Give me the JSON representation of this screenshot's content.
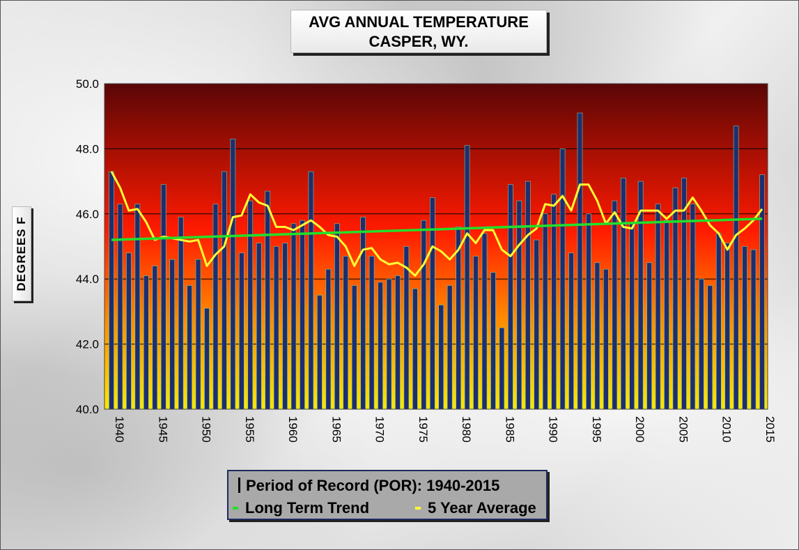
{
  "title_line1": "AVG ANNUAL  TEMPERATURE",
  "title_line2": "CASPER, WY.",
  "legend": {
    "por_label": "Period of Record (POR):  1940-2015",
    "trend_label": "Long Term Trend",
    "avg_label": "5 Year Average"
  },
  "colors": {
    "bar": "#1f2d6e",
    "bar_edge": "#6fd3a5",
    "trend": "#22e02a",
    "five_year_avg": "#ffff33",
    "plot_top": "#5a0606",
    "plot_mid": "#ff1a00",
    "plot_bottom": "#ffe600"
  },
  "chart_data": {
    "type": "bar",
    "ylabel": "DEGREES F",
    "ylim": [
      40,
      50
    ],
    "yticks": [
      "40.0",
      "42.0",
      "44.0",
      "46.0",
      "48.0",
      "50.0"
    ],
    "xtick_labels": [
      "1940",
      "1945",
      "1950",
      "1955",
      "1960",
      "1965",
      "1970",
      "1975",
      "1980",
      "1985",
      "1990",
      "1995",
      "2000",
      "2005",
      "2010",
      "2015"
    ],
    "grid": true,
    "legend_position": "bottom-center",
    "x": [
      1940,
      1941,
      1942,
      1943,
      1944,
      1945,
      1946,
      1947,
      1948,
      1949,
      1950,
      1951,
      1952,
      1953,
      1954,
      1955,
      1956,
      1957,
      1958,
      1959,
      1960,
      1961,
      1962,
      1963,
      1964,
      1965,
      1966,
      1967,
      1968,
      1969,
      1970,
      1971,
      1972,
      1973,
      1974,
      1975,
      1976,
      1977,
      1978,
      1979,
      1980,
      1981,
      1982,
      1983,
      1984,
      1985,
      1986,
      1987,
      1988,
      1989,
      1990,
      1991,
      1992,
      1993,
      1994,
      1995,
      1996,
      1997,
      1998,
      1999,
      2000,
      2001,
      2002,
      2003,
      2004,
      2005,
      2006,
      2007,
      2008,
      2009,
      2010,
      2011,
      2012,
      2013,
      2014,
      2015
    ],
    "series": [
      {
        "type": "bar",
        "values": [
          47.3,
          46.3,
          44.8,
          46.3,
          44.1,
          44.4,
          46.9,
          44.6,
          45.9,
          43.8,
          44.6,
          43.1,
          46.3,
          47.3,
          48.3,
          44.8,
          46.4,
          45.1,
          46.7,
          45.0,
          45.1,
          45.7,
          45.8,
          47.3,
          43.5,
          44.3,
          45.7,
          44.7,
          43.8,
          45.9,
          44.7,
          43.9,
          44.0,
          44.1,
          45.0,
          43.7,
          45.8,
          46.5,
          43.2,
          43.8,
          45.6,
          48.1,
          44.7,
          45.4,
          44.2,
          42.5,
          46.9,
          46.4,
          47.0,
          45.2,
          46.0,
          46.6,
          48.0,
          44.8,
          49.1,
          46.0,
          44.5,
          44.3,
          46.4,
          47.1,
          45.7,
          47.0,
          44.5,
          46.3,
          45.8,
          46.8,
          47.1,
          46.3,
          44.0,
          43.8,
          45.4,
          45.1,
          48.7,
          45.0,
          44.9,
          47.2
        ]
      },
      {
        "name": "5 Year Average",
        "type": "line",
        "values": [
          47.3,
          46.8,
          46.1,
          46.15,
          45.75,
          45.2,
          45.3,
          45.25,
          45.2,
          45.15,
          45.2,
          44.4,
          44.75,
          45.0,
          45.9,
          45.95,
          46.6,
          46.35,
          46.25,
          45.6,
          45.6,
          45.5,
          45.65,
          45.8,
          45.6,
          45.35,
          45.3,
          45.0,
          44.4,
          44.9,
          44.95,
          44.6,
          44.45,
          44.5,
          44.35,
          44.1,
          44.45,
          45.0,
          44.85,
          44.6,
          44.9,
          45.4,
          45.1,
          45.5,
          45.5,
          44.9,
          44.7,
          45.05,
          45.35,
          45.55,
          46.3,
          46.25,
          46.55,
          46.1,
          46.9,
          46.9,
          46.4,
          45.7,
          46.05,
          45.6,
          45.55,
          46.1,
          46.1,
          46.1,
          45.85,
          46.1,
          46.1,
          46.5,
          46.1,
          45.65,
          45.4,
          44.9,
          45.35,
          45.55,
          45.8,
          46.15
        ]
      },
      {
        "name": "Long Term Trend",
        "type": "line",
        "start": [
          1940,
          45.2
        ],
        "end": [
          2015,
          45.85
        ]
      }
    ]
  }
}
